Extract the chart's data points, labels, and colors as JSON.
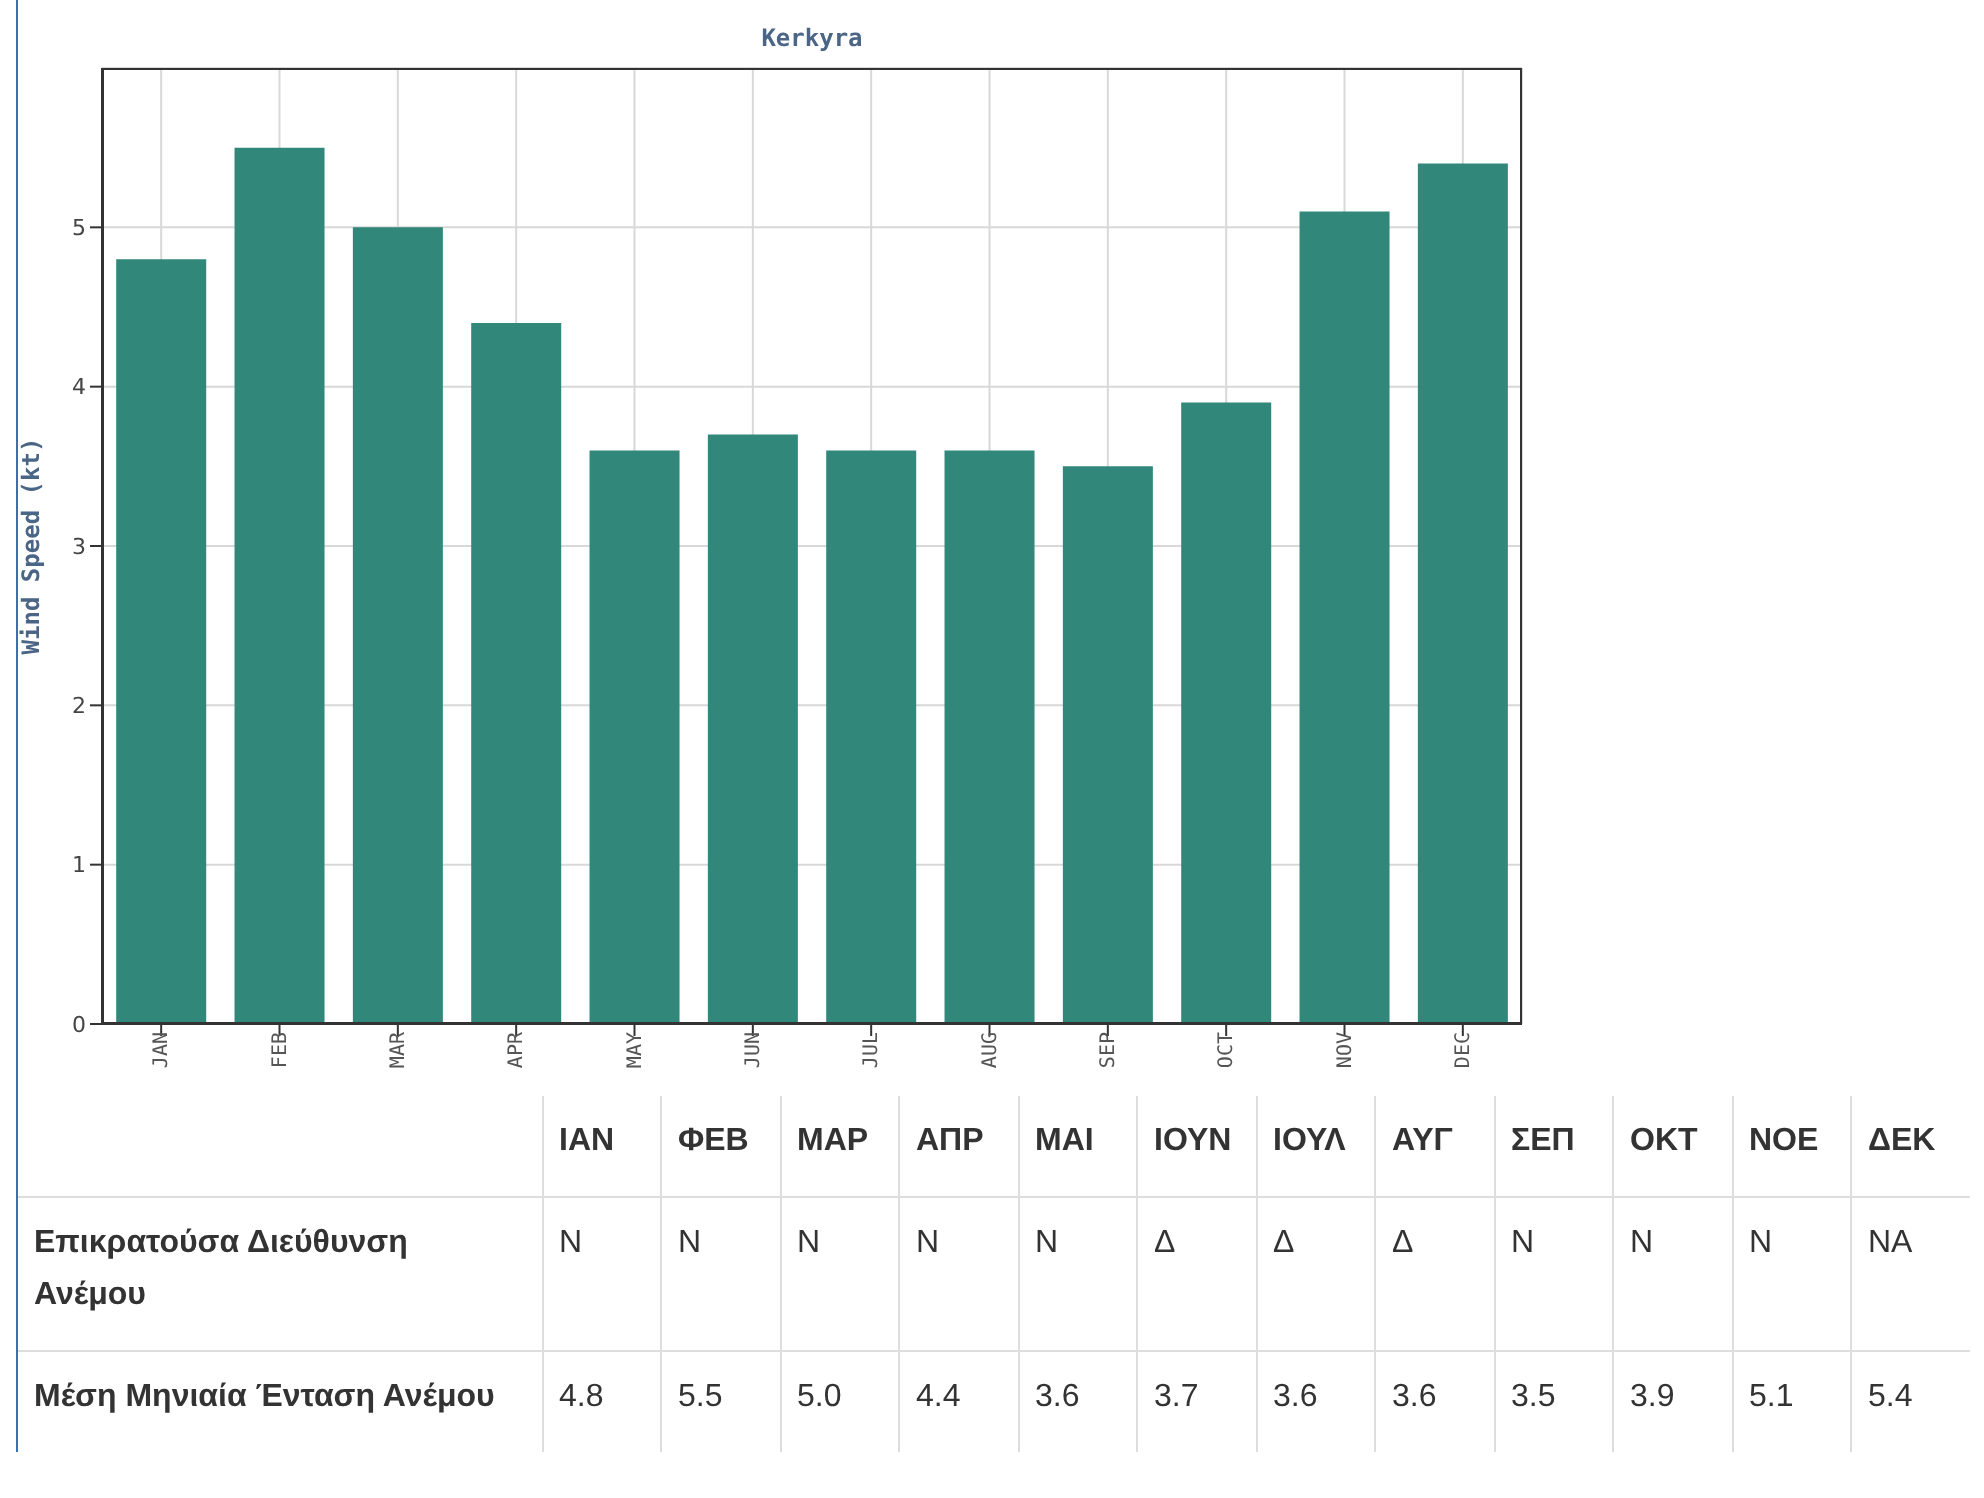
{
  "chart_data": [
    {
      "type": "bar",
      "title": "Kerkyra",
      "ylabel": "Wind Speed (kt)",
      "categories": [
        "JAN",
        "FEB",
        "MAR",
        "APR",
        "MAY",
        "JUN",
        "JUL",
        "AUG",
        "SEP",
        "OCT",
        "NOV",
        "DEC"
      ],
      "values": [
        4.8,
        5.5,
        5.0,
        4.4,
        3.6,
        3.7,
        3.6,
        3.6,
        3.5,
        3.9,
        5.1,
        5.4
      ],
      "color": "#30877a",
      "ylim": [
        0,
        6
      ],
      "yticks": [
        0,
        1,
        2,
        3,
        4,
        5
      ],
      "grid": true
    },
    {
      "type": "other",
      "categories": [
        "ΙΑΝ",
        "ΦΕΒ",
        "ΜΑΡ",
        "ΑΠΡ",
        "ΜΑΙ",
        "ΙΟΥΝ",
        "ΙΟΥΛ",
        "ΑΥΓ",
        "ΣΕΠ",
        "ΟΚΤ",
        "ΝΟΕ",
        "ΔΕΚ"
      ],
      "y_categories": [
        "Επικρατούσα Διεύθυνση Ανέμου",
        "Μέση Μηνιαία Ένταση Ανέμου"
      ],
      "cell_labels": [
        [
          "Ν",
          "Ν",
          "Ν",
          "Ν",
          "Ν",
          "Δ",
          "Δ",
          "Δ",
          "Ν",
          "Ν",
          "Ν",
          "ΝΑ"
        ],
        [
          "4.8",
          "5.5",
          "5.0",
          "4.4",
          "3.6",
          "3.7",
          "3.6",
          "3.6",
          "3.5",
          "3.9",
          "5.1",
          "5.4"
        ]
      ]
    }
  ]
}
